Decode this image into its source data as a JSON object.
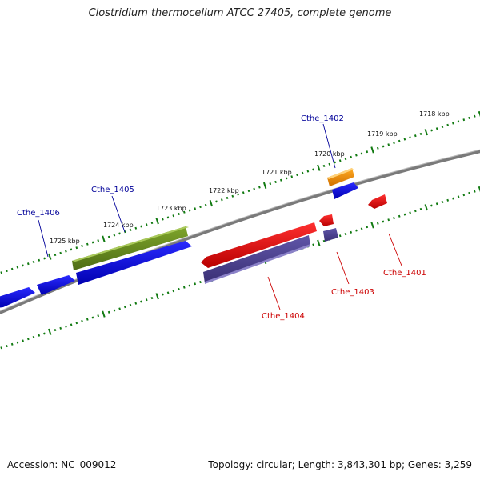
{
  "title": "Clostridium thermocellum ATCC 27405, complete genome",
  "footer": {
    "accession": "Accession: NC_009012",
    "summary": "Topology: circular; Length: 3,843,301 bp; Genes: 3,259"
  },
  "kbp_labels": [
    "1718 kbp",
    "1719 kbp",
    "1720 kbp",
    "1721 kbp",
    "1722 kbp",
    "1723 kbp",
    "1724 kbp",
    "1725 kbp"
  ],
  "genes": [
    {
      "name": "Cthe_1401",
      "strand": "reverse",
      "color": "#cc0000"
    },
    {
      "name": "Cthe_1402",
      "strand": "forward",
      "color": "#000099"
    },
    {
      "name": "Cthe_1403",
      "strand": "reverse",
      "color": "#cc0000"
    },
    {
      "name": "Cthe_1404",
      "strand": "reverse",
      "color": "#cc0000"
    },
    {
      "name": "Cthe_1405",
      "strand": "forward",
      "color": "#000099"
    },
    {
      "name": "Cthe_1406",
      "strand": "forward",
      "color": "#000099"
    }
  ],
  "colors": {
    "forward_cds": "#0000ee",
    "reverse_cds": "#ee0000",
    "gene_forward": "#6b8e23",
    "gene_reverse": "#4b3f8f",
    "rna": "#ff9900",
    "backbone": "#808080",
    "ticks": "#117a11"
  }
}
